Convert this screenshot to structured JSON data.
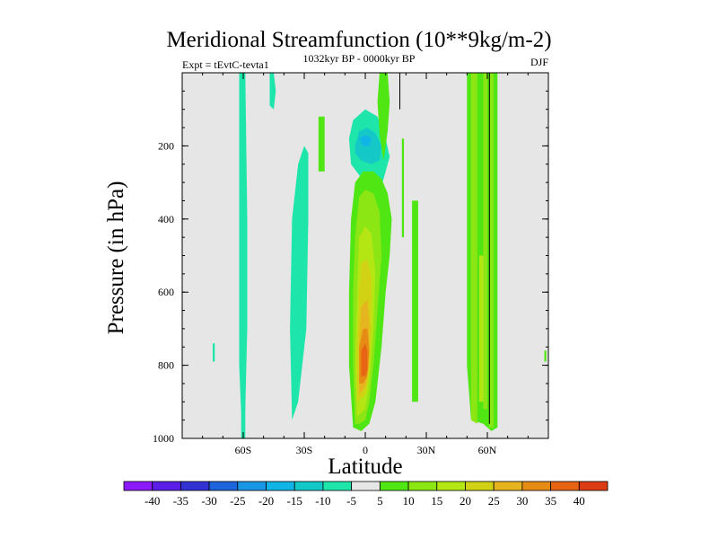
{
  "chart_data": {
    "type": "contour",
    "title": "Meridional Streamfunction (10**9kg/m-2)",
    "subtitle_left": "Expt = tEvtC-tevta1",
    "subtitle_center": "1032kyr BP - 0000kyr BP",
    "subtitle_right": "DJF",
    "xlabel": "Latitude",
    "ylabel": "Pressure (in hPa)",
    "xlim": [
      -90,
      90
    ],
    "ylim": [
      1000,
      0
    ],
    "x_ticks": [
      {
        "value": -60,
        "label": "60S"
      },
      {
        "value": -30,
        "label": "30S"
      },
      {
        "value": 0,
        "label": "0"
      },
      {
        "value": 30,
        "label": "30N"
      },
      {
        "value": 60,
        "label": "60N"
      }
    ],
    "y_ticks": [
      {
        "value": 200,
        "label": "200"
      },
      {
        "value": 400,
        "label": "400"
      },
      {
        "value": 600,
        "label": "600"
      },
      {
        "value": 800,
        "label": "800"
      },
      {
        "value": 1000,
        "label": "1000"
      }
    ],
    "colorbar": {
      "labels": [
        "-40",
        "-35",
        "-30",
        "-25",
        "-20",
        "-15",
        "-10",
        "-5",
        "5",
        "10",
        "15",
        "20",
        "25",
        "30",
        "35",
        "40"
      ],
      "colors": [
        "#8c1aff",
        "#5a1ee6",
        "#3232d2",
        "#1e64dc",
        "#1996e6",
        "#10b4e6",
        "#14c8c8",
        "#1ee6aa",
        "#e6e6e6",
        "#50e614",
        "#8ce614",
        "#b4e614",
        "#d2d214",
        "#e6b41e",
        "#e68c14",
        "#e66414",
        "#dc3c14"
      ]
    },
    "regions": [
      {
        "level": -5,
        "points": [
          [
            -61,
            1000
          ],
          [
            -61,
            0
          ],
          [
            -59,
            0
          ],
          [
            -59,
            1000
          ]
        ]
      },
      {
        "level": -5,
        "points": [
          [
            -62,
            0
          ],
          [
            -59,
            0
          ],
          [
            -58,
            400
          ],
          [
            -58,
            700
          ],
          [
            -59,
            920
          ],
          [
            -61,
            930
          ],
          [
            -62,
            800
          ],
          [
            -62,
            400
          ]
        ]
      },
      {
        "level": -5,
        "points": [
          [
            -47,
            0
          ],
          [
            -45,
            0
          ],
          [
            -44,
            50
          ],
          [
            -45,
            100
          ],
          [
            -47,
            90
          ]
        ]
      },
      {
        "level": -5,
        "points": [
          [
            -36,
            950
          ],
          [
            -37,
            700
          ],
          [
            -36,
            400
          ],
          [
            -33,
            250
          ],
          [
            -30,
            200
          ],
          [
            -28,
            220
          ],
          [
            -28,
            400
          ],
          [
            -29,
            700
          ],
          [
            -33,
            900
          ]
        ]
      },
      {
        "level": -5,
        "points": [
          [
            -75,
            740
          ],
          [
            -74,
            740
          ],
          [
            -74,
            790
          ],
          [
            -75,
            790
          ]
        ]
      },
      {
        "level": -5,
        "points": [
          [
            -8,
            180
          ],
          [
            -6,
            130
          ],
          [
            0,
            100
          ],
          [
            6,
            120
          ],
          [
            10,
            180
          ],
          [
            12,
            230
          ],
          [
            8,
            310
          ],
          [
            2,
            300
          ],
          [
            -3,
            280
          ],
          [
            -7,
            250
          ]
        ]
      },
      {
        "level": -10,
        "points": [
          [
            -5,
            200
          ],
          [
            -3,
            160
          ],
          [
            1,
            150
          ],
          [
            5,
            165
          ],
          [
            8,
            200
          ],
          [
            7,
            240
          ],
          [
            3,
            250
          ],
          [
            -2,
            240
          ],
          [
            -5,
            220
          ]
        ]
      },
      {
        "level": -15,
        "points": [
          [
            -3,
            180
          ],
          [
            0,
            170
          ],
          [
            3,
            180
          ],
          [
            2,
            200
          ],
          [
            -1,
            200
          ]
        ]
      },
      {
        "level": 5,
        "points": [
          [
            -6,
            970
          ],
          [
            -8,
            800
          ],
          [
            -8,
            600
          ],
          [
            -7,
            400
          ],
          [
            -5,
            300
          ],
          [
            -1,
            270
          ],
          [
            4,
            270
          ],
          [
            8,
            290
          ],
          [
            11,
            330
          ],
          [
            13,
            400
          ],
          [
            12,
            500
          ],
          [
            10,
            600
          ],
          [
            8,
            750
          ],
          [
            5,
            900
          ],
          [
            2,
            960
          ],
          [
            -2,
            980
          ]
        ]
      },
      {
        "level": 5,
        "points": [
          [
            7,
            0
          ],
          [
            11,
            0
          ],
          [
            12,
            80
          ],
          [
            11,
            160
          ],
          [
            9,
            240
          ],
          [
            7,
            170
          ],
          [
            6,
            80
          ]
        ]
      },
      {
        "level": 5,
        "points": [
          [
            18,
            180
          ],
          [
            19,
            180
          ],
          [
            19,
            450
          ],
          [
            18,
            450
          ]
        ]
      },
      {
        "level": 5,
        "points": [
          [
            -23,
            120
          ],
          [
            -20,
            120
          ],
          [
            -20,
            270
          ],
          [
            -23,
            270
          ]
        ]
      },
      {
        "level": 5,
        "points": [
          [
            23,
            350
          ],
          [
            26,
            350
          ],
          [
            26,
            900
          ],
          [
            23,
            900
          ]
        ]
      },
      {
        "level": 5,
        "points": [
          [
            50,
            0
          ],
          [
            65,
            0
          ],
          [
            65,
            970
          ],
          [
            62,
            980
          ],
          [
            58,
            960
          ],
          [
            52,
            950
          ],
          [
            50,
            800
          ]
        ]
      },
      {
        "level": 5,
        "points": [
          [
            88,
            760
          ],
          [
            89,
            760
          ],
          [
            89,
            790
          ],
          [
            88,
            790
          ]
        ]
      },
      {
        "level": 10,
        "points": [
          [
            -5,
            960
          ],
          [
            -6,
            800
          ],
          [
            -6,
            600
          ],
          [
            -5,
            450
          ],
          [
            -3,
            340
          ],
          [
            0,
            320
          ],
          [
            4,
            330
          ],
          [
            7,
            380
          ],
          [
            8,
            500
          ],
          [
            6,
            650
          ],
          [
            4,
            800
          ],
          [
            2,
            900
          ],
          [
            0,
            950
          ],
          [
            -3,
            960
          ]
        ]
      },
      {
        "level": 10,
        "points": [
          [
            52,
            0
          ],
          [
            55,
            0
          ],
          [
            55,
            960
          ],
          [
            52,
            950
          ]
        ]
      },
      {
        "level": 10,
        "points": [
          [
            58,
            0
          ],
          [
            60,
            0
          ],
          [
            60,
            920
          ],
          [
            58,
            920
          ]
        ]
      },
      {
        "level": 10,
        "points": [
          [
            61,
            0
          ],
          [
            63,
            0
          ],
          [
            63,
            970
          ],
          [
            61,
            970
          ]
        ]
      },
      {
        "level": 15,
        "points": [
          [
            -4,
            940
          ],
          [
            -5,
            800
          ],
          [
            -4,
            600
          ],
          [
            -3,
            450
          ],
          [
            0,
            420
          ],
          [
            3,
            440
          ],
          [
            5,
            550
          ],
          [
            4,
            700
          ],
          [
            2,
            850
          ],
          [
            0,
            920
          ]
        ]
      },
      {
        "level": 15,
        "points": [
          [
            56,
            500
          ],
          [
            58,
            500
          ],
          [
            58,
            900
          ],
          [
            56,
            900
          ]
        ]
      },
      {
        "level": 20,
        "points": [
          [
            -4,
            900
          ],
          [
            -4,
            750
          ],
          [
            -3,
            600
          ],
          [
            -2,
            520
          ],
          [
            1,
            510
          ],
          [
            3,
            560
          ],
          [
            3,
            700
          ],
          [
            2,
            820
          ],
          [
            0,
            880
          ]
        ]
      },
      {
        "level": 25,
        "points": [
          [
            -3,
            880
          ],
          [
            -3,
            740
          ],
          [
            -2,
            640
          ],
          [
            1,
            620
          ],
          [
            2,
            680
          ],
          [
            2,
            800
          ],
          [
            0,
            860
          ]
        ]
      },
      {
        "level": 30,
        "points": [
          [
            -3,
            850
          ],
          [
            -3,
            750
          ],
          [
            -1,
            700
          ],
          [
            1,
            700
          ],
          [
            2,
            760
          ],
          [
            1,
            830
          ],
          [
            -1,
            850
          ]
        ]
      },
      {
        "level": 35,
        "points": [
          [
            -2,
            830
          ],
          [
            -2,
            760
          ],
          [
            0,
            740
          ],
          [
            1,
            760
          ],
          [
            1,
            810
          ],
          [
            0,
            830
          ]
        ]
      }
    ],
    "lines": [
      {
        "points": [
          [
            61,
            0
          ],
          [
            61,
            960
          ]
        ]
      },
      {
        "points": [
          [
            17,
            0
          ],
          [
            17,
            100
          ]
        ]
      }
    ]
  }
}
